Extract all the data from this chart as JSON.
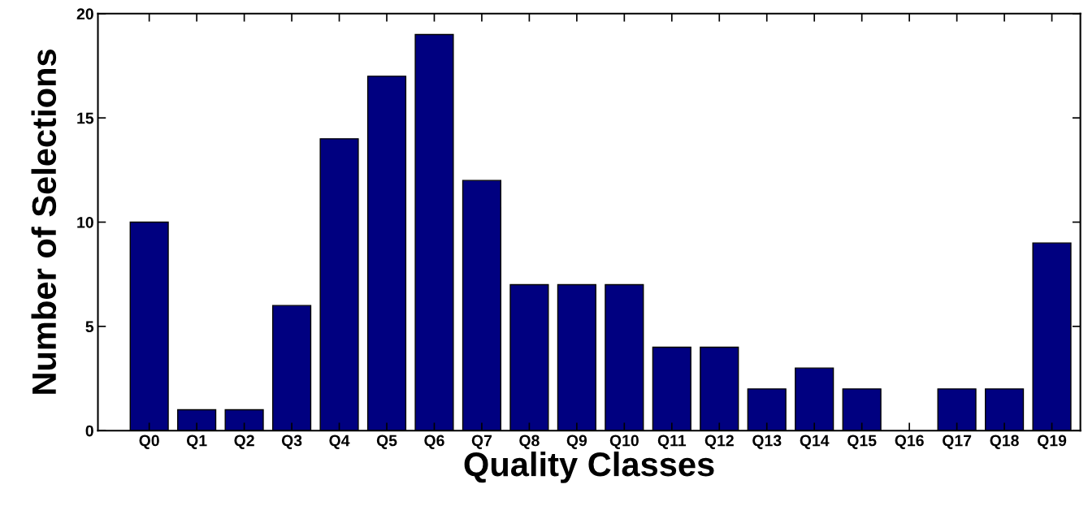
{
  "chart_data": {
    "type": "bar",
    "xlabel": "Quality Classes",
    "ylabel": "Number of Selections",
    "categories": [
      "Q0",
      "Q1",
      "Q2",
      "Q3",
      "Q4",
      "Q5",
      "Q6",
      "Q7",
      "Q8",
      "Q9",
      "Q10",
      "Q11",
      "Q12",
      "Q13",
      "Q14",
      "Q15",
      "Q16",
      "Q17",
      "Q18",
      "Q19"
    ],
    "values": [
      10,
      1,
      1,
      6,
      14,
      17,
      19,
      12,
      7,
      7,
      7,
      4,
      4,
      2,
      3,
      2,
      0,
      2,
      2,
      9
    ],
    "color": "#000080",
    "ylim": [
      0,
      20
    ],
    "yticks": [
      0,
      5,
      10,
      15,
      20
    ],
    "grid": false
  }
}
